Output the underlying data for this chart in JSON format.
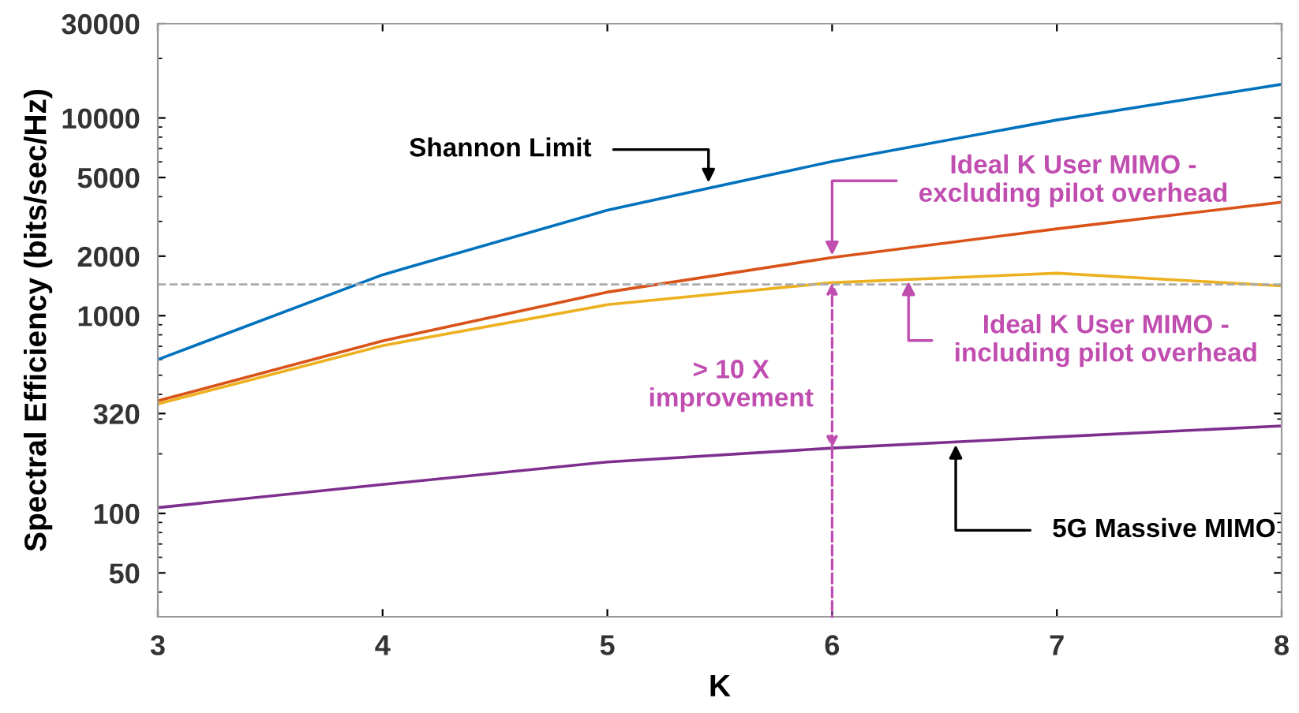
{
  "chart_data": {
    "type": "line",
    "xlabel": "K",
    "ylabel": "Spectral Efficiency (bits/sec/Hz)",
    "x": [
      3,
      4,
      5,
      6,
      7,
      8
    ],
    "series": [
      {
        "color": "#0072bd",
        "values": [
          600,
          1610,
          3420,
          6030,
          9770,
          14800
        ]
      },
      {
        "color": "#d95319",
        "values": [
          371,
          746,
          1316,
          1970,
          2750,
          3750
        ]
      },
      {
        "color": "#edb120",
        "values": [
          358,
          706,
          1137,
          1470,
          1640,
          1415
        ]
      },
      {
        "color": "#7e2f8e",
        "values": [
          107,
          140,
          182,
          214,
          244,
          277
        ]
      }
    ],
    "log": "y",
    "xlim": [
      3,
      8
    ],
    "ylim": [
      30,
      30000
    ],
    "xticks": [
      3,
      4,
      5,
      6,
      7,
      8
    ],
    "yticks": [
      50,
      100,
      320,
      1000,
      2000,
      5000,
      10000,
      30000
    ],
    "grid": false,
    "legend": false,
    "marker": "none",
    "line_style": "solid",
    "ref_lines": [
      {
        "axis": "y",
        "value": 1440,
        "color": "#aaaaaa",
        "line_style": "dashed"
      }
    ],
    "annotations": [
      {
        "text": "Shannon Limit",
        "x": 5.45,
        "y": 4600
      },
      {
        "text": "Ideal K User MIMO -\nexcluding pilot overhead",
        "x": 6,
        "y": 1970
      },
      {
        "text": "Ideal K User MIMO -\nincluding pilot overhead",
        "x": 6.34,
        "y": 1530
      },
      "> 10 X\nimprovement",
      {
        "text": "5G Massive MIMO",
        "x": 6.55,
        "y": 228
      }
    ]
  }
}
